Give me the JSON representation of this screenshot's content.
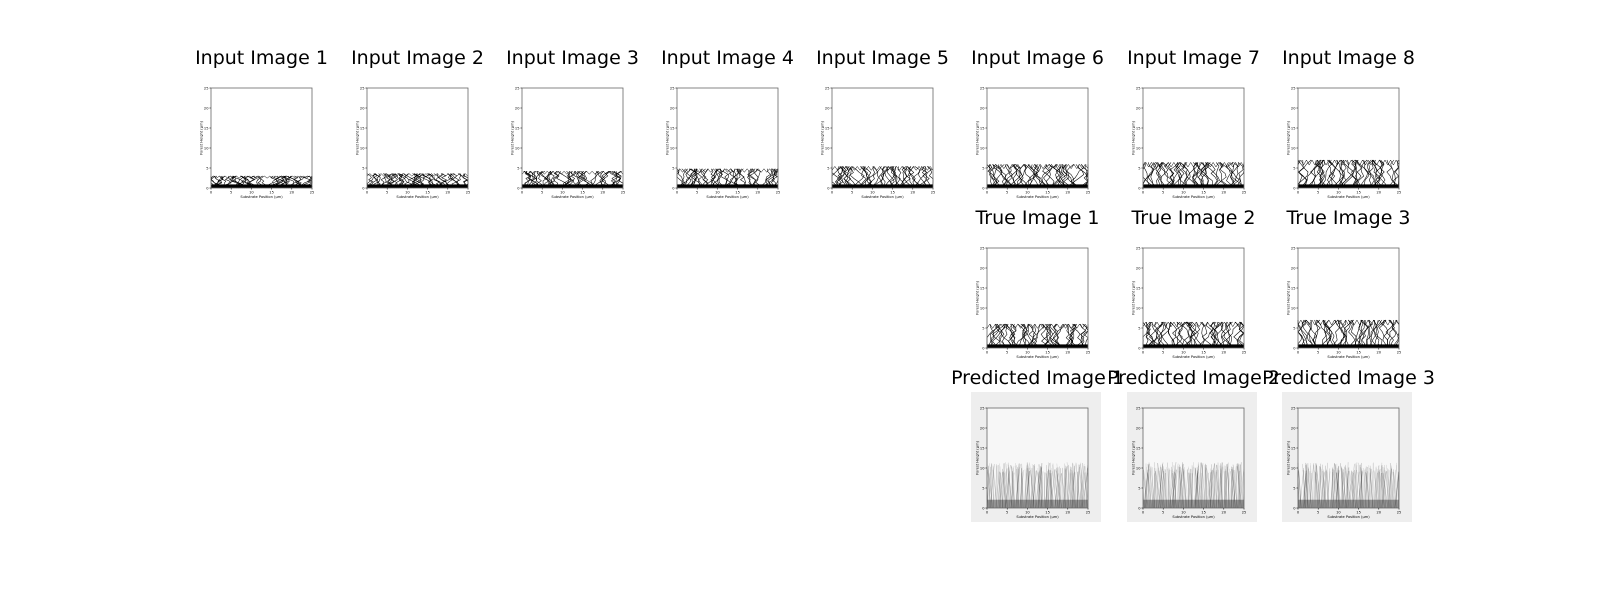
{
  "figure": {
    "background": "#ffffff"
  },
  "chart_data": [
    {
      "id": "input-1",
      "type": "line",
      "title": "Input Image 1",
      "xlabel": "Substrate Position (µm)",
      "ylabel": "Forest Height (µm)",
      "xlim": [
        0,
        25
      ],
      "ylim": [
        0,
        25
      ],
      "xticks": [
        0,
        5,
        10,
        15,
        20,
        25
      ],
      "yticks": [
        0,
        5,
        10,
        15,
        20,
        25
      ],
      "grid": false,
      "forest_height": 3.0,
      "row": 1,
      "col": 1,
      "style": "plain"
    },
    {
      "id": "input-2",
      "type": "line",
      "title": "Input Image 2",
      "xlabel": "Substrate Position (µm)",
      "ylabel": "Forest Height (µm)",
      "xlim": [
        0,
        25
      ],
      "ylim": [
        0,
        25
      ],
      "xticks": [
        0,
        5,
        10,
        15,
        20,
        25
      ],
      "yticks": [
        0,
        5,
        10,
        15,
        20,
        25
      ],
      "grid": false,
      "forest_height": 3.6,
      "row": 1,
      "col": 2,
      "style": "plain"
    },
    {
      "id": "input-3",
      "type": "line",
      "title": "Input Image 3",
      "xlabel": "Substrate Position (µm)",
      "ylabel": "Forest Height (µm)",
      "xlim": [
        0,
        25
      ],
      "ylim": [
        0,
        25
      ],
      "xticks": [
        0,
        5,
        10,
        15,
        20,
        25
      ],
      "yticks": [
        0,
        5,
        10,
        15,
        20,
        25
      ],
      "grid": false,
      "forest_height": 4.2,
      "row": 1,
      "col": 3,
      "style": "plain"
    },
    {
      "id": "input-4",
      "type": "line",
      "title": "Input Image 4",
      "xlabel": "Substrate Position (µm)",
      "ylabel": "Forest Height (µm)",
      "xlim": [
        0,
        25
      ],
      "ylim": [
        0,
        25
      ],
      "xticks": [
        0,
        5,
        10,
        15,
        20,
        25
      ],
      "yticks": [
        0,
        5,
        10,
        15,
        20,
        25
      ],
      "grid": false,
      "forest_height": 4.8,
      "row": 1,
      "col": 4,
      "style": "plain"
    },
    {
      "id": "input-5",
      "type": "line",
      "title": "Input Image 5",
      "xlabel": "Substrate Position (µm)",
      "ylabel": "Forest Height (µm)",
      "xlim": [
        0,
        25
      ],
      "ylim": [
        0,
        25
      ],
      "xticks": [
        0,
        5,
        10,
        15,
        20,
        25
      ],
      "yticks": [
        0,
        5,
        10,
        15,
        20,
        25
      ],
      "grid": false,
      "forest_height": 5.4,
      "row": 1,
      "col": 5,
      "style": "plain"
    },
    {
      "id": "input-6",
      "type": "line",
      "title": "Input Image 6",
      "xlabel": "Substrate Position (µm)",
      "ylabel": "Forest Height (µm)",
      "xlim": [
        0,
        25
      ],
      "ylim": [
        0,
        25
      ],
      "xticks": [
        0,
        5,
        10,
        15,
        20,
        25
      ],
      "yticks": [
        0,
        5,
        10,
        15,
        20,
        25
      ],
      "grid": false,
      "forest_height": 5.9,
      "row": 1,
      "col": 6,
      "style": "plain"
    },
    {
      "id": "input-7",
      "type": "line",
      "title": "Input Image 7",
      "xlabel": "Substrate Position (µm)",
      "ylabel": "Forest Height (µm)",
      "xlim": [
        0,
        25
      ],
      "ylim": [
        0,
        25
      ],
      "xticks": [
        0,
        5,
        10,
        15,
        20,
        25
      ],
      "yticks": [
        0,
        5,
        10,
        15,
        20,
        25
      ],
      "grid": false,
      "forest_height": 6.4,
      "row": 1,
      "col": 7,
      "style": "plain"
    },
    {
      "id": "input-8",
      "type": "line",
      "title": "Input Image 8",
      "xlabel": "Substrate Position (µm)",
      "ylabel": "Forest Height (µm)",
      "xlim": [
        0,
        25
      ],
      "ylim": [
        0,
        25
      ],
      "xticks": [
        0,
        5,
        10,
        15,
        20,
        25
      ],
      "yticks": [
        0,
        5,
        10,
        15,
        20,
        25
      ],
      "grid": false,
      "forest_height": 7.0,
      "row": 1,
      "col": 8,
      "style": "plain"
    },
    {
      "id": "true-1",
      "type": "line",
      "title": "True Image 1",
      "xlabel": "Substrate Position (µm)",
      "ylabel": "Forest Height (µm)",
      "xlim": [
        0,
        25
      ],
      "ylim": [
        0,
        25
      ],
      "xticks": [
        0,
        5,
        10,
        15,
        20,
        25
      ],
      "yticks": [
        0,
        5,
        10,
        15,
        20,
        25
      ],
      "grid": false,
      "forest_height": 6.0,
      "row": 2,
      "col": 6,
      "style": "plain"
    },
    {
      "id": "true-2",
      "type": "line",
      "title": "True Image 2",
      "xlabel": "Substrate Position (µm)",
      "ylabel": "Forest Height (µm)",
      "xlim": [
        0,
        25
      ],
      "ylim": [
        0,
        25
      ],
      "xticks": [
        0,
        5,
        10,
        15,
        20,
        25
      ],
      "yticks": [
        0,
        5,
        10,
        15,
        20,
        25
      ],
      "grid": false,
      "forest_height": 6.5,
      "row": 2,
      "col": 7,
      "style": "plain"
    },
    {
      "id": "true-3",
      "type": "line",
      "title": "True Image 3",
      "xlabel": "Substrate Position (µm)",
      "ylabel": "Forest Height (µm)",
      "xlim": [
        0,
        25
      ],
      "ylim": [
        0,
        25
      ],
      "xticks": [
        0,
        5,
        10,
        15,
        20,
        25
      ],
      "yticks": [
        0,
        5,
        10,
        15,
        20,
        25
      ],
      "grid": false,
      "forest_height": 7.0,
      "row": 2,
      "col": 8,
      "style": "plain"
    },
    {
      "id": "pred-1",
      "type": "line",
      "title": "Predicted Image 1",
      "xlabel": "Substrate Position (µm)",
      "ylabel": "Forest Height (µm)",
      "xlim": [
        0,
        25
      ],
      "ylim": [
        0,
        25
      ],
      "xticks": [
        0,
        5,
        10,
        15,
        20,
        25
      ],
      "yticks": [
        0,
        5,
        10,
        15,
        20,
        25
      ],
      "grid": false,
      "forest_height": 11.5,
      "row": 3,
      "col": 6,
      "style": "predicted"
    },
    {
      "id": "pred-2",
      "type": "line",
      "title": "Predicted Image 2",
      "xlabel": "Substrate Position (µm)",
      "ylabel": "Forest Height (µm)",
      "xlim": [
        0,
        25
      ],
      "ylim": [
        0,
        25
      ],
      "xticks": [
        0,
        5,
        10,
        15,
        20,
        25
      ],
      "yticks": [
        0,
        5,
        10,
        15,
        20,
        25
      ],
      "grid": false,
      "forest_height": 11.5,
      "row": 3,
      "col": 7,
      "style": "predicted"
    },
    {
      "id": "pred-3",
      "type": "line",
      "title": "Predicted Image 3",
      "xlabel": "Substrate Position (µm)",
      "ylabel": "Forest Height (µm)",
      "xlim": [
        0,
        25
      ],
      "ylim": [
        0,
        25
      ],
      "xticks": [
        0,
        5,
        10,
        15,
        20,
        25
      ],
      "yticks": [
        0,
        5,
        10,
        15,
        20,
        25
      ],
      "grid": false,
      "forest_height": 11.5,
      "row": 3,
      "col": 8,
      "style": "predicted"
    }
  ],
  "colors": {
    "line": "#000000",
    "frame": "#666666",
    "predicted_background": "#eeeeee"
  }
}
